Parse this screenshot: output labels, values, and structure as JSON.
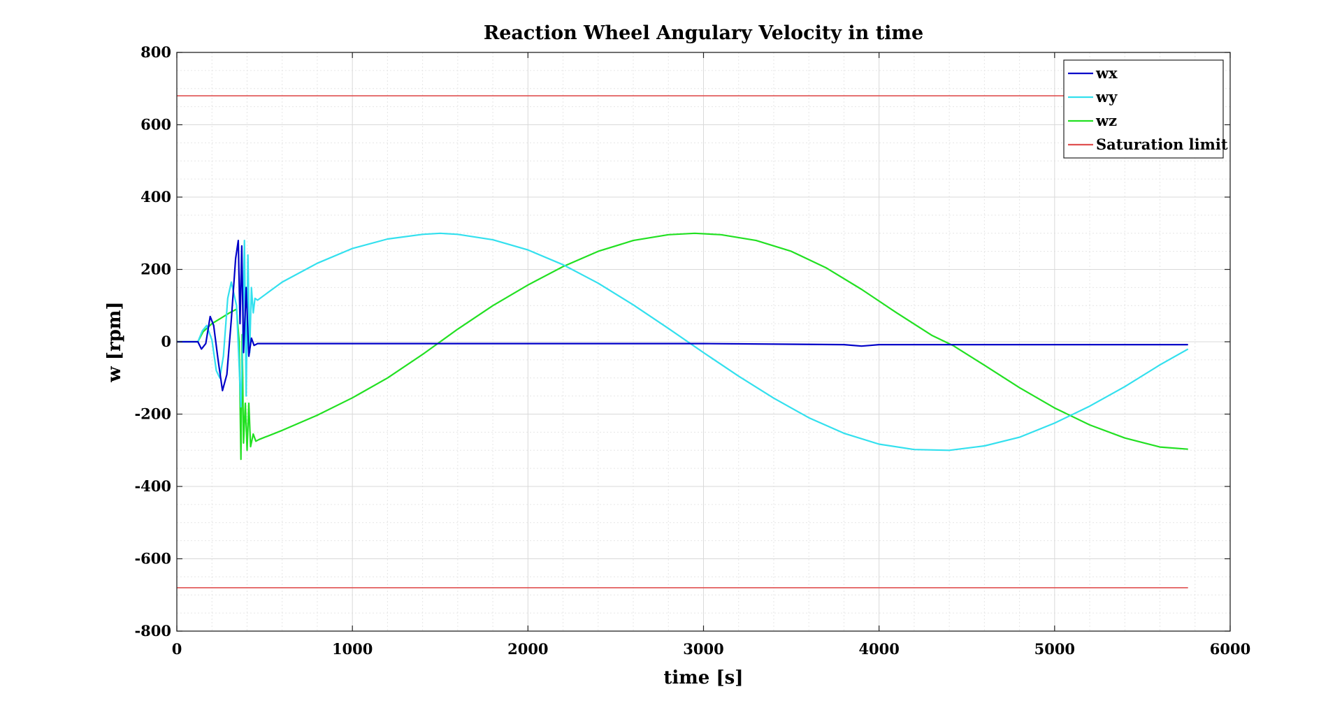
{
  "chart_data": {
    "type": "line",
    "title": "Reaction Wheel Angulary Velocity in time",
    "xlabel": "time [s]",
    "ylabel": "w [rpm]",
    "xlim": [
      0,
      6000
    ],
    "ylim": [
      -800,
      800
    ],
    "xticks": [
      "0",
      "1000",
      "2000",
      "3000",
      "4000",
      "5000",
      "6000"
    ],
    "yticks": [
      "800",
      "600",
      "400",
      "200",
      "0",
      "-200",
      "-400",
      "-600",
      "-800"
    ],
    "grid": true,
    "legend_position": "top-right",
    "series": [
      {
        "name": "wx",
        "color": "#0000c8",
        "x": [
          0,
          120,
          140,
          165,
          190,
          210,
          235,
          260,
          285,
          310,
          335,
          350,
          360,
          370,
          380,
          395,
          410,
          425,
          440,
          460,
          500,
          1000,
          2000,
          3000,
          3800,
          3900,
          3950,
          4000,
          4500,
          5000,
          5760
        ],
        "y": [
          0,
          0,
          -20,
          -5,
          70,
          45,
          -50,
          -135,
          -90,
          60,
          230,
          280,
          50,
          265,
          -30,
          150,
          -40,
          10,
          -10,
          -5,
          -5,
          -5,
          -5,
          -5,
          -8,
          -12,
          -10,
          -8,
          -8,
          -8,
          -8
        ]
      },
      {
        "name": "wy",
        "color": "#33e0ee",
        "x": [
          0,
          120,
          145,
          170,
          200,
          225,
          245,
          265,
          290,
          310,
          340,
          365,
          375,
          385,
          395,
          405,
          415,
          425,
          435,
          445,
          460,
          600,
          800,
          1000,
          1200,
          1400,
          1500,
          1600,
          1800,
          2000,
          2200,
          2400,
          2600,
          2800,
          3000,
          3200,
          3400,
          3600,
          3800,
          4000,
          4200,
          4400,
          4600,
          4800,
          5000,
          5200,
          5400,
          5600,
          5760
        ],
        "y": [
          0,
          0,
          30,
          45,
          5,
          -80,
          -100,
          -40,
          120,
          165,
          100,
          -180,
          0,
          280,
          -150,
          240,
          -30,
          150,
          80,
          120,
          115,
          165,
          217,
          258,
          284,
          297,
          300,
          297,
          282,
          254,
          213,
          162,
          102,
          37,
          -30,
          -95,
          -156,
          -210,
          -253,
          -283,
          -298,
          -300,
          -288,
          -264,
          -225,
          -178,
          -124,
          -64,
          -20
        ]
      },
      {
        "name": "wz",
        "color": "#22e022",
        "x": [
          0,
          120,
          150,
          200,
          250,
          300,
          340,
          355,
          365,
          372,
          380,
          390,
          400,
          410,
          420,
          435,
          450,
          470,
          600,
          800,
          1000,
          1200,
          1400,
          1500,
          1600,
          1800,
          2000,
          2200,
          2400,
          2600,
          2800,
          2950,
          3100,
          3300,
          3500,
          3700,
          3900,
          4100,
          4300,
          4420,
          4600,
          4800,
          5000,
          5200,
          5400,
          5600,
          5760
        ],
        "y": [
          0,
          0,
          28,
          50,
          65,
          80,
          90,
          0,
          -325,
          20,
          -280,
          -170,
          -300,
          -170,
          -290,
          -255,
          -275,
          -270,
          -245,
          -203,
          -155,
          -100,
          -35,
          0,
          35,
          100,
          157,
          208,
          250,
          280,
          296,
          300,
          296,
          280,
          250,
          204,
          145,
          80,
          18,
          -10,
          -65,
          -127,
          -183,
          -230,
          -266,
          -291,
          -297
        ]
      },
      {
        "name": "Saturation limit",
        "color": "#e05050",
        "segments": [
          {
            "x": [
              0,
              5760
            ],
            "y": [
              680,
              680
            ]
          },
          {
            "x": [
              0,
              5760
            ],
            "y": [
              -680,
              -680
            ]
          }
        ]
      }
    ]
  }
}
